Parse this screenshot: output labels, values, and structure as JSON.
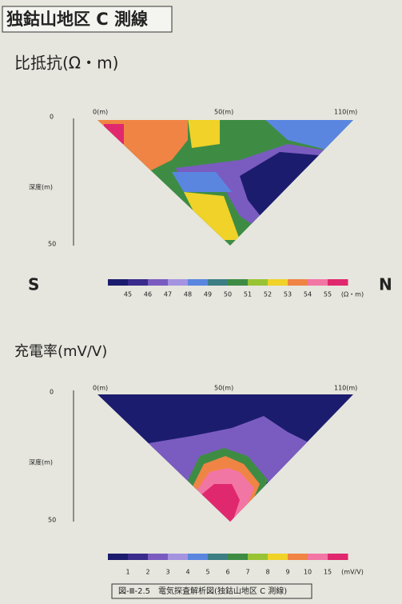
{
  "header": {
    "title": "独鈷山地区 C 測線"
  },
  "panels": [
    {
      "title": "比抵抗(Ω・m)",
      "x_labels": [
        "0(m)",
        "50(m)",
        "110(m)"
      ],
      "depth_labels": [
        "0",
        "深度(m)",
        "50"
      ],
      "side_labels": [
        "S",
        "N"
      ],
      "colorbar": {
        "labels": [
          "45",
          "46",
          "47",
          "48",
          "49",
          "50",
          "51",
          "52",
          "53",
          "54",
          "55"
        ],
        "unit": "(Ω・m)",
        "colors": [
          "#1c1c6e",
          "#3a2c8c",
          "#7a5cc0",
          "#a494e0",
          "#5a86e0",
          "#3c7e84",
          "#3e8c44",
          "#98c434",
          "#f0d228",
          "#f08444",
          "#f276a4",
          "#e0286e"
        ]
      }
    },
    {
      "title": "充電率(mV/V)",
      "x_labels": [
        "0(m)",
        "50(m)",
        "110(m)"
      ],
      "depth_labels": [
        "0",
        "深度(m)",
        "50"
      ],
      "colorbar": {
        "labels": [
          "1",
          "2",
          "3",
          "4",
          "5",
          "6",
          "7",
          "8",
          "9",
          "10",
          "15"
        ],
        "unit": "(mV/V)",
        "colors": [
          "#1c1c6e",
          "#3a2c8c",
          "#7a5cc0",
          "#a494e0",
          "#5a86e0",
          "#3c7e84",
          "#3e8c44",
          "#98c434",
          "#f0d228",
          "#f08444",
          "#f276a4",
          "#e0286e"
        ]
      }
    }
  ],
  "caption": "図-Ⅲ-2.5　電気探査解析図(独鈷山地区 C 測線)"
}
